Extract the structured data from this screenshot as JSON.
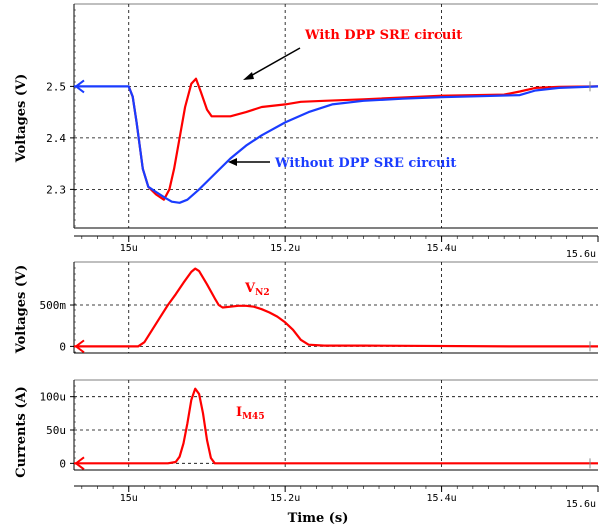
{
  "xlabel": "Time (s)",
  "x_ticks": [
    "15u",
    "15.2u",
    "15.4u",
    "15.6u"
  ],
  "chart_data": [
    {
      "type": "line",
      "ylabel": "Voltages (V)",
      "ylim": [
        2.225,
        2.66
      ],
      "xlim": [
        14.93,
        15.6
      ],
      "y_ticks": [
        "2.5",
        "2.4",
        "2.3"
      ],
      "y_tick_values": [
        2.5,
        2.4,
        2.3
      ],
      "grid": true,
      "series": [
        {
          "name": "With DPP SRE circuit",
          "color": "#ff0000",
          "points": [
            [
              15.0,
              2.5
            ],
            [
              15.005,
              2.48
            ],
            [
              15.01,
              2.43
            ],
            [
              15.018,
              2.34
            ],
            [
              15.025,
              2.305
            ],
            [
              15.035,
              2.29
            ],
            [
              15.045,
              2.28
            ],
            [
              15.052,
              2.3
            ],
            [
              15.058,
              2.34
            ],
            [
              15.065,
              2.4
            ],
            [
              15.072,
              2.46
            ],
            [
              15.08,
              2.505
            ],
            [
              15.086,
              2.515
            ],
            [
              15.092,
              2.49
            ],
            [
              15.1,
              2.455
            ],
            [
              15.106,
              2.442
            ],
            [
              15.13,
              2.442
            ],
            [
              15.15,
              2.45
            ],
            [
              15.17,
              2.46
            ],
            [
              15.2,
              2.465
            ],
            [
              15.22,
              2.47
            ],
            [
              15.25,
              2.472
            ],
            [
              15.3,
              2.475
            ],
            [
              15.4,
              2.482
            ],
            [
              15.48,
              2.484
            ],
            [
              15.5,
              2.49
            ],
            [
              15.52,
              2.497
            ],
            [
              15.55,
              2.499
            ],
            [
              15.6,
              2.5
            ]
          ]
        },
        {
          "name": "Without DPP SRE circuit",
          "color": "#1a3cff",
          "points": [
            [
              14.93,
              2.5
            ],
            [
              15.0,
              2.5
            ],
            [
              15.005,
              2.48
            ],
            [
              15.01,
              2.43
            ],
            [
              15.018,
              2.34
            ],
            [
              15.025,
              2.305
            ],
            [
              15.035,
              2.295
            ],
            [
              15.045,
              2.285
            ],
            [
              15.055,
              2.276
            ],
            [
              15.065,
              2.274
            ],
            [
              15.075,
              2.28
            ],
            [
              15.09,
              2.3
            ],
            [
              15.11,
              2.33
            ],
            [
              15.13,
              2.36
            ],
            [
              15.15,
              2.385
            ],
            [
              15.17,
              2.405
            ],
            [
              15.2,
              2.43
            ],
            [
              15.23,
              2.45
            ],
            [
              15.26,
              2.465
            ],
            [
              15.3,
              2.472
            ],
            [
              15.35,
              2.476
            ],
            [
              15.4,
              2.479
            ],
            [
              15.45,
              2.481
            ],
            [
              15.5,
              2.483
            ],
            [
              15.52,
              2.492
            ],
            [
              15.55,
              2.497
            ],
            [
              15.6,
              2.5
            ]
          ]
        }
      ],
      "annotations": [
        {
          "text": "With DPP SRE circuit",
          "color": "#ff0000"
        },
        {
          "text": "Without DPP SRE circuit",
          "color": "#1a3cff"
        }
      ]
    },
    {
      "type": "line",
      "ylabel": "Voltages (V)",
      "ylim": [
        -0.08,
        1.02
      ],
      "xlim": [
        14.93,
        15.6
      ],
      "y_ticks": [
        "500m",
        "0"
      ],
      "y_tick_values": [
        0.5,
        0.0
      ],
      "grid": true,
      "label_main": "V",
      "label_sub": "N2",
      "label_color": "#ff0000",
      "series": [
        {
          "name": "V_N2",
          "color": "#ff0000",
          "points": [
            [
              14.93,
              0.0
            ],
            [
              15.0,
              0.0
            ],
            [
              15.012,
              0.0
            ],
            [
              15.02,
              0.05
            ],
            [
              15.03,
              0.2
            ],
            [
              15.04,
              0.35
            ],
            [
              15.05,
              0.5
            ],
            [
              15.06,
              0.63
            ],
            [
              15.07,
              0.77
            ],
            [
              15.08,
              0.9
            ],
            [
              15.085,
              0.94
            ],
            [
              15.09,
              0.91
            ],
            [
              15.1,
              0.75
            ],
            [
              15.11,
              0.58
            ],
            [
              15.115,
              0.5
            ],
            [
              15.12,
              0.47
            ],
            [
              15.13,
              0.48
            ],
            [
              15.14,
              0.49
            ],
            [
              15.15,
              0.49
            ],
            [
              15.16,
              0.48
            ],
            [
              15.17,
              0.45
            ],
            [
              15.18,
              0.41
            ],
            [
              15.19,
              0.36
            ],
            [
              15.2,
              0.29
            ],
            [
              15.21,
              0.2
            ],
            [
              15.22,
              0.08
            ],
            [
              15.23,
              0.02
            ],
            [
              15.25,
              0.01
            ],
            [
              15.3,
              0.01
            ],
            [
              15.5,
              0.0
            ],
            [
              15.6,
              0.0
            ]
          ]
        }
      ]
    },
    {
      "type": "line",
      "ylabel": "Currents (A)",
      "ylim": [
        -10,
        125
      ],
      "xlim": [
        14.93,
        15.6
      ],
      "y_ticks": [
        "100u",
        "50u",
        "0"
      ],
      "y_tick_values": [
        100,
        50,
        0
      ],
      "grid": true,
      "label_main": "I",
      "label_sub": "M45",
      "label_color": "#ff0000",
      "series": [
        {
          "name": "I_M45",
          "color": "#ff0000",
          "points": [
            [
              14.93,
              0
            ],
            [
              15.05,
              0
            ],
            [
              15.06,
              2
            ],
            [
              15.065,
              10
            ],
            [
              15.07,
              30
            ],
            [
              15.075,
              60
            ],
            [
              15.08,
              95
            ],
            [
              15.085,
              112
            ],
            [
              15.09,
              104
            ],
            [
              15.095,
              75
            ],
            [
              15.1,
              35
            ],
            [
              15.105,
              8
            ],
            [
              15.11,
              0
            ],
            [
              15.3,
              0
            ],
            [
              15.6,
              0
            ]
          ]
        }
      ]
    }
  ]
}
